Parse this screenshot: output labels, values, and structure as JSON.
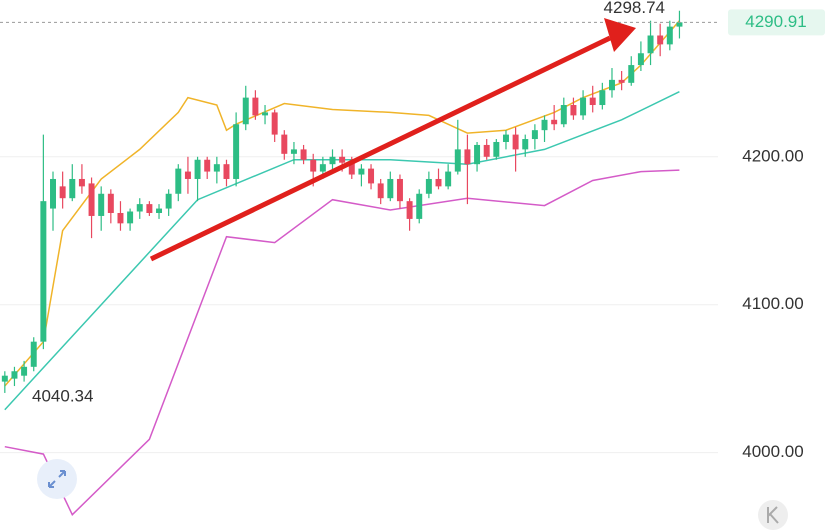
{
  "chart_data": {
    "type": "candlestick",
    "ylim": [
      3947,
      4306
    ],
    "xlim": [
      -0.5,
      74
    ],
    "yticks": [
      {
        "value": 4000,
        "label": "4000.00"
      },
      {
        "value": 4100,
        "label": "4100.00"
      },
      {
        "value": 4200,
        "label": "4200.00"
      }
    ],
    "grid": true,
    "up_color": "#2dbd85",
    "down_color": "#e8485f",
    "high": 4298.74,
    "low": 4040.34,
    "last": 4290.91,
    "ohlc": [
      [
        4048,
        4055,
        4040.34,
        4052
      ],
      [
        4050,
        4058,
        4045,
        4055
      ],
      [
        4052,
        4062,
        4048,
        4058
      ],
      [
        4058,
        4078,
        4055,
        4075
      ],
      [
        4075,
        4215,
        4070,
        4170
      ],
      [
        4165,
        4190,
        4150,
        4185
      ],
      [
        4180,
        4190,
        4165,
        4172
      ],
      [
        4172,
        4195,
        4170,
        4185
      ],
      [
        4185,
        4195,
        4175,
        4180
      ],
      [
        4182,
        4186,
        4145,
        4160
      ],
      [
        4160,
        4180,
        4150,
        4175
      ],
      [
        4175,
        4178,
        4155,
        4162
      ],
      [
        4162,
        4170,
        4150,
        4155
      ],
      [
        4155,
        4165,
        4150,
        4163
      ],
      [
        4163,
        4172,
        4158,
        4168
      ],
      [
        4168,
        4170,
        4160,
        4162
      ],
      [
        4162,
        4168,
        4158,
        4165
      ],
      [
        4165,
        4178,
        4160,
        4175
      ],
      [
        4175,
        4195,
        4170,
        4192
      ],
      [
        4190,
        4200,
        4175,
        4185
      ],
      [
        4185,
        4200,
        4170,
        4198
      ],
      [
        4198,
        4200,
        4185,
        4190
      ],
      [
        4190,
        4200,
        4182,
        4195
      ],
      [
        4195,
        4198,
        4180,
        4185
      ],
      [
        4185,
        4230,
        4180,
        4222
      ],
      [
        4222,
        4248,
        4218,
        4240
      ],
      [
        4240,
        4245,
        4225,
        4228
      ],
      [
        4228,
        4235,
        4222,
        4230
      ],
      [
        4230,
        4232,
        4210,
        4215
      ],
      [
        4215,
        4218,
        4198,
        4202
      ],
      [
        4202,
        4210,
        4195,
        4205
      ],
      [
        4205,
        4208,
        4195,
        4198
      ],
      [
        4198,
        4202,
        4180,
        4190
      ],
      [
        4190,
        4200,
        4185,
        4195
      ],
      [
        4195,
        4205,
        4190,
        4200
      ],
      [
        4200,
        4205,
        4190,
        4196
      ],
      [
        4196,
        4200,
        4185,
        4188
      ],
      [
        4188,
        4195,
        4180,
        4192
      ],
      [
        4192,
        4195,
        4178,
        4182
      ],
      [
        4182,
        4185,
        4168,
        4172
      ],
      [
        4172,
        4190,
        4170,
        4185
      ],
      [
        4185,
        4188,
        4165,
        4170
      ],
      [
        4170,
        4172,
        4150,
        4158
      ],
      [
        4158,
        4178,
        4155,
        4175
      ],
      [
        4175,
        4190,
        4172,
        4185
      ],
      [
        4185,
        4192,
        4178,
        4180
      ],
      [
        4180,
        4195,
        4178,
        4190
      ],
      [
        4190,
        4225,
        4188,
        4205
      ],
      [
        4205,
        4215,
        4168,
        4195
      ],
      [
        4195,
        4210,
        4190,
        4208
      ],
      [
        4208,
        4212,
        4198,
        4200
      ],
      [
        4200,
        4212,
        4198,
        4210
      ],
      [
        4210,
        4218,
        4205,
        4215
      ],
      [
        4215,
        4220,
        4190,
        4205
      ],
      [
        4205,
        4215,
        4200,
        4212
      ],
      [
        4212,
        4222,
        4205,
        4218
      ],
      [
        4218,
        4228,
        4210,
        4225
      ],
      [
        4225,
        4235,
        4218,
        4222
      ],
      [
        4222,
        4240,
        4220,
        4235
      ],
      [
        4235,
        4240,
        4225,
        4228
      ],
      [
        4228,
        4245,
        4225,
        4240
      ],
      [
        4240,
        4248,
        4230,
        4235
      ],
      [
        4235,
        4250,
        4232,
        4245
      ],
      [
        4245,
        4260,
        4240,
        4252
      ],
      [
        4252,
        4258,
        4245,
        4250
      ],
      [
        4250,
        4268,
        4248,
        4262
      ],
      [
        4262,
        4278,
        4258,
        4270
      ],
      [
        4270,
        4292,
        4262,
        4282
      ],
      [
        4282,
        4290,
        4268,
        4276
      ],
      [
        4276,
        4292,
        4272,
        4288
      ],
      [
        4288,
        4298.74,
        4280,
        4290.91
      ]
    ],
    "lines": [
      {
        "color": "#f0b429",
        "x": [
          0,
          4,
          6,
          10,
          14,
          18,
          19,
          22,
          23,
          24,
          29,
          34,
          40,
          44,
          48,
          52,
          57,
          60,
          64,
          66,
          70
        ],
        "values": [
          4045,
          4075,
          4150,
          4185,
          4205,
          4230,
          4240,
          4235,
          4218,
          4222,
          4236,
          4232,
          4230,
          4228,
          4216,
          4218,
          4230,
          4240,
          4250,
          4262,
          4292
        ]
      },
      {
        "color": "#3cc8b0",
        "x": [
          0,
          10,
          20,
          30,
          40,
          48,
          56,
          64,
          70
        ],
        "values": [
          4029,
          4100,
          4171,
          4198,
          4198,
          4195,
          4205,
          4225,
          4244
        ]
      },
      {
        "color": "#d45bc8",
        "x": [
          0,
          4,
          7,
          15,
          23,
          28,
          34,
          40,
          48,
          56,
          61,
          66,
          70
        ],
        "values": [
          4004,
          3999,
          3958,
          4009,
          4146,
          4142,
          4171,
          4164,
          4172,
          4167,
          4184,
          4190,
          4191
        ]
      }
    ]
  }
}
